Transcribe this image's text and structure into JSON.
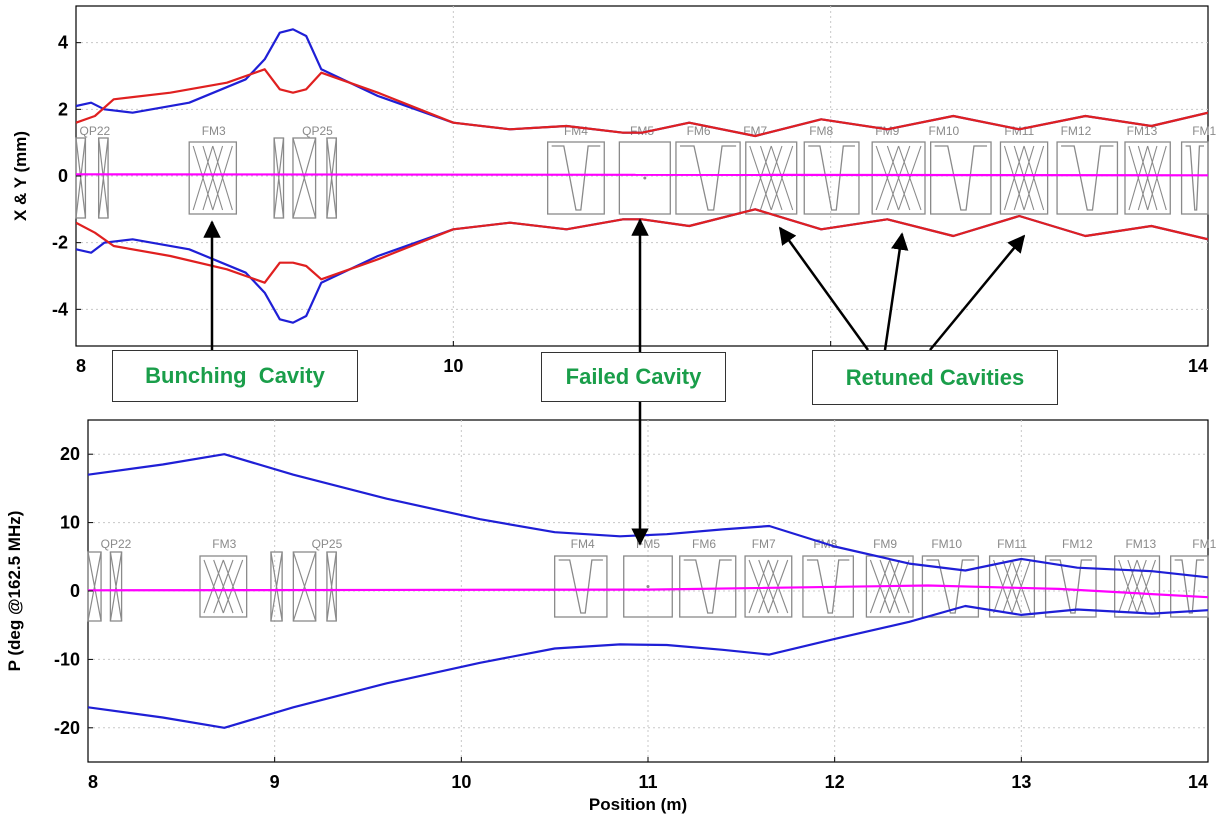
{
  "chart_data": [
    {
      "type": "line",
      "title": "",
      "xlabel": "",
      "ylabel": "X & Y (mm)",
      "xlim": [
        8,
        14
      ],
      "ylim": [
        -5.1,
        5.1
      ],
      "x_ticks": [
        8,
        10,
        12,
        14
      ],
      "x_tick_labels": [
        "8",
        "10",
        "",
        "14"
      ],
      "y_ticks": [
        -4,
        -2,
        0,
        2,
        4
      ],
      "y_tick_labels": [
        "-4",
        "-2",
        "0",
        "2",
        "4"
      ],
      "grid": true,
      "series": [
        {
          "color": "#1f1fd6",
          "role": "upper envelope",
          "x": [
            8.0,
            8.08,
            8.15,
            8.3,
            8.6,
            8.9,
            9.0,
            9.08,
            9.15,
            9.22,
            9.3,
            9.6,
            10.0,
            10.3,
            10.6,
            10.9,
            11.0,
            11.25,
            11.6,
            11.95,
            12.3,
            12.65,
            13.0,
            13.35,
            13.7,
            14.0
          ],
          "y": [
            2.1,
            2.2,
            2.0,
            1.9,
            2.2,
            2.9,
            3.5,
            4.3,
            4.4,
            4.2,
            3.2,
            2.4,
            1.6,
            1.4,
            1.5,
            1.3,
            1.3,
            1.6,
            1.2,
            1.7,
            1.4,
            1.8,
            1.4,
            1.8,
            1.5,
            1.9
          ]
        },
        {
          "color": "#1f1fd6",
          "role": "lower envelope",
          "x": [
            8.0,
            8.08,
            8.15,
            8.3,
            8.6,
            8.9,
            9.0,
            9.08,
            9.15,
            9.22,
            9.3,
            9.6,
            10.0,
            10.3,
            10.6,
            10.9,
            11.0,
            11.25,
            11.6,
            11.95,
            12.3,
            12.65,
            13.0,
            13.35,
            13.7,
            14.0
          ],
          "y": [
            -2.2,
            -2.3,
            -2.0,
            -1.9,
            -2.2,
            -2.9,
            -3.5,
            -4.3,
            -4.4,
            -4.2,
            -3.2,
            -2.4,
            -1.6,
            -1.4,
            -1.6,
            -1.3,
            -1.3,
            -1.5,
            -1.0,
            -1.6,
            -1.3,
            -1.8,
            -1.2,
            -1.8,
            -1.5,
            -1.9
          ]
        },
        {
          "color": "#e02020",
          "role": "upper envelope",
          "x": [
            8.0,
            8.1,
            8.2,
            8.5,
            8.8,
            9.0,
            9.08,
            9.15,
            9.22,
            9.3,
            9.6,
            10.0,
            10.3,
            10.6,
            10.9,
            11.0,
            11.25,
            11.6,
            11.95,
            12.3,
            12.65,
            13.0,
            13.35,
            13.7,
            14.0
          ],
          "y": [
            1.6,
            1.8,
            2.3,
            2.5,
            2.8,
            3.2,
            2.6,
            2.5,
            2.6,
            3.1,
            2.5,
            1.6,
            1.4,
            1.5,
            1.3,
            1.3,
            1.6,
            1.2,
            1.7,
            1.4,
            1.8,
            1.4,
            1.8,
            1.5,
            1.9
          ]
        },
        {
          "color": "#e02020",
          "role": "lower envelope",
          "x": [
            8.0,
            8.1,
            8.2,
            8.5,
            8.8,
            9.0,
            9.08,
            9.15,
            9.22,
            9.3,
            9.6,
            10.0,
            10.3,
            10.6,
            10.9,
            11.0,
            11.25,
            11.6,
            11.95,
            12.3,
            12.65,
            13.0,
            13.35,
            13.7,
            14.0
          ],
          "y": [
            -1.4,
            -1.7,
            -2.1,
            -2.4,
            -2.8,
            -3.2,
            -2.6,
            -2.6,
            -2.7,
            -3.1,
            -2.5,
            -1.6,
            -1.4,
            -1.6,
            -1.3,
            -1.3,
            -1.5,
            -1.0,
            -1.6,
            -1.3,
            -1.8,
            -1.2,
            -1.8,
            -1.5,
            -1.9
          ]
        },
        {
          "color": "#ff00ff",
          "role": "centroid",
          "x": [
            8.0,
            14.0
          ],
          "y": [
            0.05,
            0.02
          ]
        }
      ],
      "element_labels": [
        {
          "text": "QP22",
          "x": 8.1
        },
        {
          "text": "FM3",
          "x": 8.73
        },
        {
          "text": "QP25",
          "x": 9.28
        },
        {
          "text": "FM4",
          "x": 10.65
        },
        {
          "text": "FM5",
          "x": 11.0
        },
        {
          "text": "FM6",
          "x": 11.3
        },
        {
          "text": "FM7",
          "x": 11.6
        },
        {
          "text": "FM8",
          "x": 11.95
        },
        {
          "text": "FM9",
          "x": 12.3
        },
        {
          "text": "FM10",
          "x": 12.6
        },
        {
          "text": "FM11",
          "x": 13.0
        },
        {
          "text": "FM12",
          "x": 13.3
        },
        {
          "text": "FM13",
          "x": 13.65
        },
        {
          "text": "FM1",
          "x": 13.98
        }
      ],
      "elements": [
        {
          "kind": "quad",
          "start": 8.0,
          "end": 8.05
        },
        {
          "kind": "quad",
          "start": 8.12,
          "end": 8.17
        },
        {
          "kind": "cavity-xx",
          "start": 8.6,
          "end": 8.85
        },
        {
          "kind": "quad",
          "start": 9.05,
          "end": 9.1
        },
        {
          "kind": "quad-x",
          "start": 9.15,
          "end": 9.27
        },
        {
          "kind": "quad",
          "start": 9.33,
          "end": 9.38
        },
        {
          "kind": "cavity-v",
          "start": 10.5,
          "end": 10.8
        },
        {
          "kind": "cavity-off",
          "start": 10.88,
          "end": 11.15
        },
        {
          "kind": "cavity-v",
          "start": 11.18,
          "end": 11.52
        },
        {
          "kind": "cavity-xx",
          "start": 11.55,
          "end": 11.82
        },
        {
          "kind": "cavity-v",
          "start": 11.86,
          "end": 12.15
        },
        {
          "kind": "cavity-xx",
          "start": 12.22,
          "end": 12.5
        },
        {
          "kind": "cavity-v",
          "start": 12.53,
          "end": 12.85
        },
        {
          "kind": "cavity-xx",
          "start": 12.9,
          "end": 13.15
        },
        {
          "kind": "cavity-v",
          "start": 13.2,
          "end": 13.52
        },
        {
          "kind": "cavity-xx",
          "start": 13.56,
          "end": 13.8
        },
        {
          "kind": "cavity-v",
          "start": 13.86,
          "end": 14.05
        }
      ]
    },
    {
      "type": "line",
      "title": "",
      "xlabel": "Position (m)",
      "ylabel": "P (deg @162.5 MHz)",
      "xlim": [
        8,
        14
      ],
      "ylim": [
        -25,
        25
      ],
      "x_ticks": [
        8,
        9,
        10,
        11,
        12,
        13,
        14
      ],
      "x_tick_labels": [
        "8",
        "9",
        "10",
        "11",
        "12",
        "13",
        "14"
      ],
      "y_ticks": [
        -20,
        -10,
        0,
        10,
        20
      ],
      "y_tick_labels": [
        "-20",
        "-10",
        "0",
        "10",
        "20"
      ],
      "grid": true,
      "series": [
        {
          "color": "#1f1fd6",
          "role": "upper envelope",
          "x": [
            8.0,
            8.4,
            8.73,
            9.1,
            9.6,
            10.1,
            10.5,
            10.85,
            11.1,
            11.4,
            11.65,
            12.0,
            12.4,
            12.7,
            13.0,
            13.3,
            13.7,
            14.0
          ],
          "y": [
            17,
            18.5,
            20,
            17,
            13.5,
            10.5,
            8.6,
            8,
            8.3,
            9,
            9.5,
            6.5,
            4,
            3,
            4.7,
            3.4,
            2.9,
            2
          ]
        },
        {
          "color": "#1f1fd6",
          "role": "lower envelope",
          "x": [
            8.0,
            8.4,
            8.73,
            9.1,
            9.6,
            10.1,
            10.5,
            10.85,
            11.1,
            11.4,
            11.65,
            12.0,
            12.4,
            12.7,
            13.0,
            13.3,
            13.7,
            14.0
          ],
          "y": [
            -17,
            -18.5,
            -20,
            -17,
            -13.5,
            -10.5,
            -8.4,
            -7.8,
            -7.9,
            -8.6,
            -9.3,
            -7,
            -4.5,
            -2.2,
            -3.5,
            -2.7,
            -3.3,
            -2.8
          ]
        },
        {
          "color": "#ff00ff",
          "role": "centroid",
          "x": [
            8.0,
            11.0,
            12.5,
            13.2,
            14.0
          ],
          "y": [
            0.1,
            0.2,
            0.8,
            0.3,
            -0.9
          ]
        }
      ],
      "element_labels": [
        {
          "text": "QP22",
          "x": 8.15
        },
        {
          "text": "FM3",
          "x": 8.73
        },
        {
          "text": "QP25",
          "x": 9.28
        },
        {
          "text": "FM4",
          "x": 10.65
        },
        {
          "text": "FM5",
          "x": 11.0
        },
        {
          "text": "FM6",
          "x": 11.3
        },
        {
          "text": "FM7",
          "x": 11.62
        },
        {
          "text": "FM8",
          "x": 11.95
        },
        {
          "text": "FM9",
          "x": 12.27
        },
        {
          "text": "FM10",
          "x": 12.6
        },
        {
          "text": "FM11",
          "x": 12.95
        },
        {
          "text": "FM12",
          "x": 13.3
        },
        {
          "text": "FM13",
          "x": 13.64
        },
        {
          "text": "FM1",
          "x": 13.98
        }
      ],
      "elements": [
        {
          "kind": "quad",
          "start": 8.0,
          "end": 8.07
        },
        {
          "kind": "quad",
          "start": 8.12,
          "end": 8.18
        },
        {
          "kind": "cavity-xx",
          "start": 8.6,
          "end": 8.85
        },
        {
          "kind": "quad",
          "start": 8.98,
          "end": 9.04
        },
        {
          "kind": "quad-x",
          "start": 9.1,
          "end": 9.22
        },
        {
          "kind": "quad",
          "start": 9.28,
          "end": 9.33
        },
        {
          "kind": "cavity-v",
          "start": 10.5,
          "end": 10.78
        },
        {
          "kind": "cavity-off",
          "start": 10.87,
          "end": 11.13
        },
        {
          "kind": "cavity-v",
          "start": 11.17,
          "end": 11.47
        },
        {
          "kind": "cavity-xx",
          "start": 11.52,
          "end": 11.77
        },
        {
          "kind": "cavity-v",
          "start": 11.83,
          "end": 12.1
        },
        {
          "kind": "cavity-xx",
          "start": 12.17,
          "end": 12.42
        },
        {
          "kind": "cavity-v",
          "start": 12.47,
          "end": 12.77
        },
        {
          "kind": "cavity-xx",
          "start": 12.83,
          "end": 13.07
        },
        {
          "kind": "cavity-v",
          "start": 13.13,
          "end": 13.4
        },
        {
          "kind": "cavity-xx",
          "start": 13.5,
          "end": 13.74
        },
        {
          "kind": "cavity-v",
          "start": 13.8,
          "end": 14.05
        }
      ]
    }
  ],
  "annotations": {
    "bunching_cavity": "Bunching  Cavity",
    "failed_cavity": "Failed Cavity",
    "retuned_cavities": "Retuned Cavities"
  },
  "colors": {
    "blue_envelope": "#1f1fd6",
    "red_envelope": "#e02020",
    "centroid": "#ff00ff",
    "annotation_text": "#1a9e4a",
    "element_outline": "#8a8a8a"
  }
}
